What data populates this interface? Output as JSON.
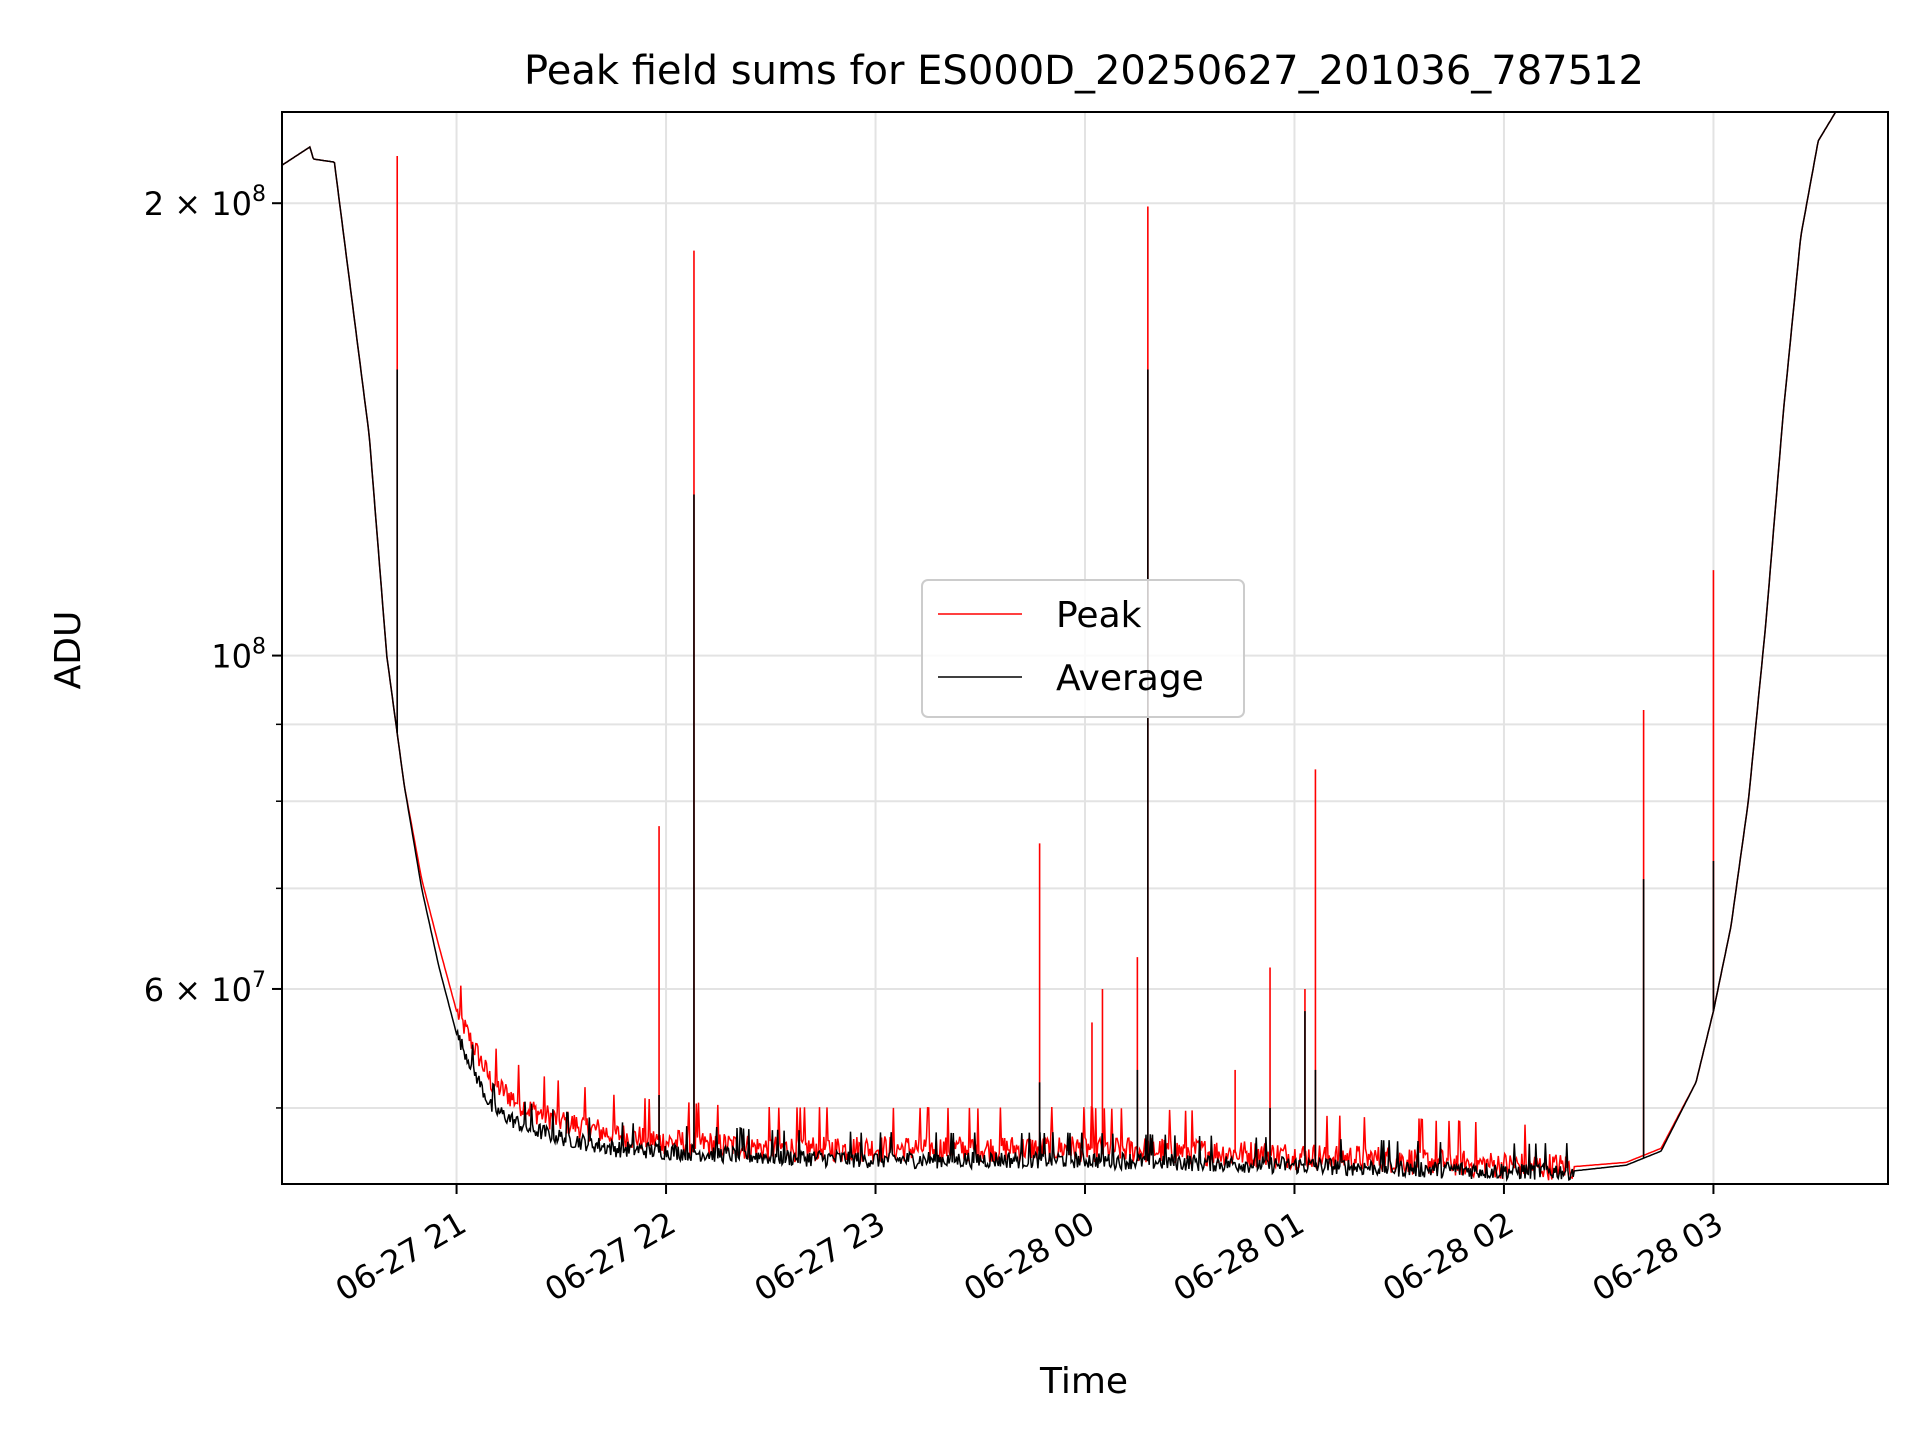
{
  "chart_data": {
    "type": "line",
    "title": "Peak field sums for ES000D_20250627_201036_787512",
    "xlabel": "Time",
    "ylabel": "ADU",
    "y_scale": "log",
    "ylim": [
      44500000,
      230000000
    ],
    "xlim": [
      "2025-06-27 20:10",
      "2025-06-28 03:50"
    ],
    "grid": true,
    "legend_position": "center",
    "x_ticks": [
      {
        "label": "06-27 21",
        "value": "2025-06-27 21:00"
      },
      {
        "label": "06-27 22",
        "value": "2025-06-27 22:00"
      },
      {
        "label": "06-27 23",
        "value": "2025-06-27 23:00"
      },
      {
        "label": "06-28 00",
        "value": "2025-06-28 00:00"
      },
      {
        "label": "06-28 01",
        "value": "2025-06-28 01:00"
      },
      {
        "label": "06-28 02",
        "value": "2025-06-28 02:00"
      },
      {
        "label": "06-28 03",
        "value": "2025-06-28 03:00"
      }
    ],
    "y_ticks": [
      {
        "value": 60000000,
        "label": "6 × 10^7",
        "base": "6 × 10",
        "exp": "7"
      },
      {
        "value": 100000000,
        "label": "10^8",
        "base": "10",
        "exp": "8"
      },
      {
        "value": 200000000,
        "label": "2 × 10^8",
        "base": "2 × 10",
        "exp": "8"
      }
    ],
    "y_minor_ticks": [
      50000000,
      70000000,
      80000000,
      90000000
    ],
    "series": [
      {
        "name": "Peak",
        "color": "#ff0000",
        "noise": 1400000,
        "x": [
          "2025-06-27 20:10",
          "2025-06-27 20:18",
          "2025-06-27 20:19",
          "2025-06-27 20:25",
          "2025-06-27 20:35",
          "2025-06-27 20:40",
          "2025-06-27 20:45",
          "2025-06-27 20:50",
          "2025-06-27 20:55",
          "2025-06-27 21:00",
          "2025-06-27 21:10",
          "2025-06-27 21:20",
          "2025-06-27 21:30",
          "2025-06-27 21:45",
          "2025-06-27 22:00",
          "2025-06-27 22:30",
          "2025-06-27 23:00",
          "2025-06-27 23:30",
          "2025-06-28 00:00",
          "2025-06-28 00:30",
          "2025-06-28 01:00",
          "2025-06-28 01:30",
          "2025-06-28 02:00",
          "2025-06-28 02:20",
          "2025-06-28 02:35",
          "2025-06-28 02:45",
          "2025-06-28 02:55",
          "2025-06-28 03:00",
          "2025-06-28 03:05",
          "2025-06-28 03:10",
          "2025-06-28 03:15",
          "2025-06-28 03:20",
          "2025-06-28 03:25",
          "2025-06-28 03:30",
          "2025-06-28 03:35",
          "2025-06-28 03:50"
        ],
        "y": [
          212000000,
          218000000,
          214000000,
          213000000,
          140000000,
          100000000,
          82000000,
          71000000,
          64000000,
          58000000,
          52000000,
          50000000,
          49000000,
          48000000,
          47500000,
          47000000,
          47000000,
          47000000,
          47000000,
          46800000,
          46500000,
          46200000,
          45800000,
          45700000,
          46000000,
          47000000,
          52000000,
          58000000,
          66000000,
          80000000,
          105000000,
          145000000,
          190000000,
          220000000,
          230000000,
          230000000
        ],
        "spikes": [
          {
            "x": "2025-06-27 20:43",
            "y": 215000000
          },
          {
            "x": "2025-06-27 21:58",
            "y": 77000000
          },
          {
            "x": "2025-06-27 22:08",
            "y": 186000000
          },
          {
            "x": "2025-06-27 23:47",
            "y": 75000000
          },
          {
            "x": "2025-06-28 00:02",
            "y": 57000000
          },
          {
            "x": "2025-06-28 00:05",
            "y": 60000000
          },
          {
            "x": "2025-06-28 00:15",
            "y": 63000000
          },
          {
            "x": "2025-06-28 00:18",
            "y": 199000000
          },
          {
            "x": "2025-06-28 00:43",
            "y": 53000000
          },
          {
            "x": "2025-06-28 00:53",
            "y": 62000000
          },
          {
            "x": "2025-06-28 01:03",
            "y": 60000000
          },
          {
            "x": "2025-06-28 01:06",
            "y": 84000000
          },
          {
            "x": "2025-06-28 02:40",
            "y": 92000000
          },
          {
            "x": "2025-06-28 03:00",
            "y": 114000000
          }
        ]
      },
      {
        "name": "Average",
        "color": "#000000",
        "noise": 900000,
        "x": [
          "2025-06-27 20:10",
          "2025-06-27 20:18",
          "2025-06-27 20:19",
          "2025-06-27 20:25",
          "2025-06-27 20:35",
          "2025-06-27 20:40",
          "2025-06-27 20:45",
          "2025-06-27 20:50",
          "2025-06-27 20:55",
          "2025-06-27 21:00",
          "2025-06-27 21:10",
          "2025-06-27 21:20",
          "2025-06-27 21:30",
          "2025-06-27 21:45",
          "2025-06-27 22:00",
          "2025-06-27 22:30",
          "2025-06-27 23:00",
          "2025-06-27 23:30",
          "2025-06-28 00:00",
          "2025-06-28 00:30",
          "2025-06-28 01:00",
          "2025-06-28 01:30",
          "2025-06-28 02:00",
          "2025-06-28 02:20",
          "2025-06-28 02:35",
          "2025-06-28 02:45",
          "2025-06-28 02:55",
          "2025-06-28 03:00",
          "2025-06-28 03:05",
          "2025-06-28 03:10",
          "2025-06-28 03:15",
          "2025-06-28 03:20",
          "2025-06-28 03:25",
          "2025-06-28 03:30",
          "2025-06-28 03:35",
          "2025-06-28 03:50"
        ],
        "y": [
          212000000,
          218000000,
          214000000,
          213000000,
          140000000,
          100000000,
          82000000,
          70000000,
          62000000,
          56000000,
          50000000,
          48500000,
          47800000,
          47000000,
          46800000,
          46400000,
          46200000,
          46200000,
          46200000,
          46000000,
          45800000,
          45600000,
          45400000,
          45400000,
          45800000,
          46800000,
          52000000,
          58000000,
          66000000,
          80000000,
          105000000,
          145000000,
          190000000,
          220000000,
          230000000,
          230000000
        ],
        "spikes": [
          {
            "x": "2025-06-27 20:43",
            "y": 155000000
          },
          {
            "x": "2025-06-27 21:58",
            "y": 51000000
          },
          {
            "x": "2025-06-27 22:08",
            "y": 128000000
          },
          {
            "x": "2025-06-27 23:47",
            "y": 52000000
          },
          {
            "x": "2025-06-28 00:15",
            "y": 53000000
          },
          {
            "x": "2025-06-28 00:18",
            "y": 155000000
          },
          {
            "x": "2025-06-28 00:53",
            "y": 50000000
          },
          {
            "x": "2025-06-28 01:03",
            "y": 58000000
          },
          {
            "x": "2025-06-28 01:06",
            "y": 53000000
          },
          {
            "x": "2025-06-28 02:40",
            "y": 71000000
          },
          {
            "x": "2025-06-28 03:00",
            "y": 73000000
          }
        ]
      }
    ]
  }
}
